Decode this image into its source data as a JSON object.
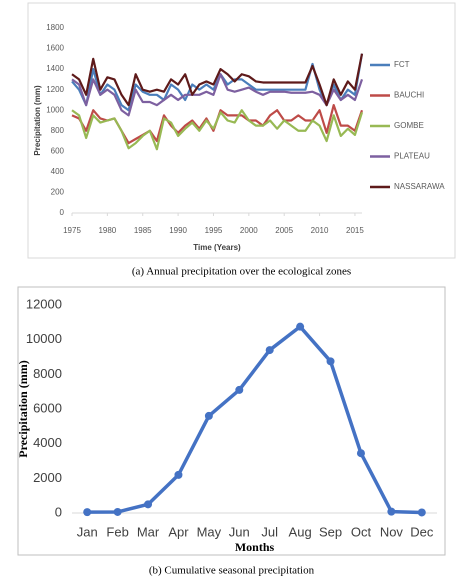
{
  "chart_data": [
    {
      "type": "line",
      "caption": "(a) Annual precipitation over the ecological zones",
      "xlabel": "Time (Years)",
      "ylabel": "Precipitation (mm)",
      "x": [
        1975,
        1976,
        1977,
        1978,
        1979,
        1980,
        1981,
        1982,
        1983,
        1984,
        1985,
        1986,
        1987,
        1988,
        1989,
        1990,
        1991,
        1992,
        1993,
        1994,
        1995,
        1996,
        1997,
        1998,
        1999,
        2000,
        2001,
        2002,
        2003,
        2004,
        2005,
        2006,
        2007,
        2008,
        2009,
        2010,
        2011,
        2012,
        2013,
        2014,
        2015,
        2016
      ],
      "series": [
        {
          "name": "FCT",
          "color": "#4a7ebb",
          "values": [
            1280,
            1200,
            1050,
            1400,
            1150,
            1250,
            1200,
            1050,
            1000,
            1250,
            1180,
            1150,
            1150,
            1100,
            1250,
            1200,
            1100,
            1250,
            1200,
            1250,
            1200,
            1350,
            1250,
            1300,
            1300,
            1250,
            1200,
            1200,
            1200,
            1200,
            1200,
            1200,
            1200,
            1200,
            1450,
            1200,
            1050,
            1250,
            1100,
            1200,
            1150,
            1550
          ]
        },
        {
          "name": "BAUCHI",
          "color": "#be4b48",
          "values": [
            950,
            920,
            800,
            1000,
            920,
            900,
            920,
            800,
            680,
            720,
            760,
            800,
            700,
            950,
            850,
            780,
            850,
            900,
            820,
            920,
            800,
            1000,
            950,
            950,
            950,
            900,
            900,
            850,
            950,
            1000,
            900,
            900,
            950,
            900,
            900,
            1000,
            780,
            1050,
            850,
            850,
            800,
            1000
          ]
        },
        {
          "name": "GOMBE",
          "color": "#98b954",
          "values": [
            1000,
            950,
            730,
            950,
            880,
            900,
            920,
            800,
            630,
            680,
            750,
            800,
            620,
            920,
            880,
            750,
            820,
            880,
            800,
            900,
            820,
            980,
            900,
            880,
            1000,
            900,
            850,
            850,
            900,
            820,
            900,
            850,
            800,
            800,
            900,
            850,
            700,
            950,
            750,
            820,
            760,
            980
          ]
        },
        {
          "name": "PLATEAU",
          "color": "#7d60a0",
          "values": [
            1300,
            1250,
            1050,
            1300,
            1150,
            1200,
            1150,
            1000,
            950,
            1200,
            1080,
            1080,
            1050,
            1100,
            1150,
            1100,
            1150,
            1150,
            1150,
            1180,
            1150,
            1350,
            1200,
            1180,
            1200,
            1220,
            1180,
            1150,
            1180,
            1180,
            1180,
            1170,
            1170,
            1170,
            1180,
            1150,
            1050,
            1200,
            1100,
            1150,
            1100,
            1300
          ]
        },
        {
          "name": "NASSARAWA",
          "color": "#5e1a1a",
          "values": [
            1350,
            1300,
            1150,
            1500,
            1200,
            1320,
            1300,
            1150,
            1050,
            1350,
            1200,
            1180,
            1200,
            1180,
            1300,
            1250,
            1350,
            1150,
            1250,
            1280,
            1250,
            1400,
            1350,
            1280,
            1350,
            1330,
            1280,
            1270,
            1270,
            1270,
            1270,
            1270,
            1270,
            1270,
            1430,
            1250,
            1050,
            1300,
            1150,
            1280,
            1200,
            1550
          ]
        }
      ],
      "xlim": [
        1975,
        2016
      ],
      "xticks": [
        1975,
        1980,
        1985,
        1990,
        1995,
        2000,
        2005,
        2010,
        2015
      ],
      "ylim": [
        0,
        1800
      ],
      "yticks": [
        0,
        200,
        400,
        600,
        800,
        1000,
        1200,
        1400,
        1600,
        1800
      ],
      "legend": "right",
      "grid": false,
      "markers": false
    },
    {
      "type": "line",
      "caption": "(b) Cumulative seasonal precipitation",
      "xlabel": "Months",
      "ylabel": "Precipitation (mm)",
      "categories": [
        "Jan",
        "Feb",
        "Mar",
        "Apr",
        "May",
        "Jun",
        "Jul",
        "Aug",
        "Sep",
        "Oct",
        "Nov",
        "Dec"
      ],
      "values": [
        50,
        60,
        500,
        2200,
        5600,
        7100,
        9400,
        10750,
        8750,
        3450,
        80,
        30
      ],
      "color": "#4472c4",
      "ylim": [
        0,
        12000
      ],
      "yticks": [
        0,
        2000,
        4000,
        6000,
        8000,
        10000,
        12000
      ],
      "grid": false,
      "markers": true
    }
  ]
}
